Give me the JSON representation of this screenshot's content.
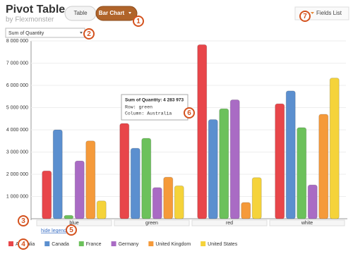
{
  "header": {
    "title": "Pivot Table",
    "subtitle": "by Flexmonster"
  },
  "toolbar": {
    "table_button": "Table",
    "chart_button": "Bar Chart",
    "fields_button": "Fields List",
    "measure_select": "Sum of Quantity"
  },
  "hide_legend": "hide legend",
  "tooltip": {
    "value": "Sum of Quantity: 4 283 973",
    "row": "Row: green",
    "column": "Column: Australia"
  },
  "badges": [
    "1",
    "2",
    "3",
    "4",
    "5",
    "6",
    "7"
  ],
  "chart_data": {
    "type": "bar",
    "categories": [
      "blue",
      "green",
      "red",
      "white"
    ],
    "series": [
      {
        "name": "Australia",
        "color": "#e8464a",
        "values": [
          2150000,
          4283973,
          7830000,
          5170000
        ]
      },
      {
        "name": "Canada",
        "color": "#5b8fcf",
        "values": [
          4000000,
          3170000,
          4460000,
          5750000
        ]
      },
      {
        "name": "France",
        "color": "#6cc15b",
        "values": [
          150000,
          3620000,
          4950000,
          4100000
        ]
      },
      {
        "name": "Germany",
        "color": "#a96bc4",
        "values": [
          2600000,
          1400000,
          5350000,
          1520000
        ]
      },
      {
        "name": "United Kingdom",
        "color": "#f59a3a",
        "values": [
          3500000,
          1870000,
          730000,
          4700000
        ]
      },
      {
        "name": "United States",
        "color": "#f5d33a",
        "values": [
          800000,
          1480000,
          1850000,
          6330000
        ]
      }
    ],
    "ylim": [
      0,
      8000000
    ],
    "yticks": [
      {
        "value": 1000000,
        "label": "1 000 000"
      },
      {
        "value": 2000000,
        "label": "2 000 000"
      },
      {
        "value": 3000000,
        "label": "3 000 000"
      },
      {
        "value": 4000000,
        "label": "4 000 000"
      },
      {
        "value": 5000000,
        "label": "5 000 000"
      },
      {
        "value": 6000000,
        "label": "6 000 000"
      },
      {
        "value": 7000000,
        "label": "7 000 000"
      },
      {
        "value": 8000000,
        "label": "8 000 000"
      }
    ],
    "grid": true
  }
}
